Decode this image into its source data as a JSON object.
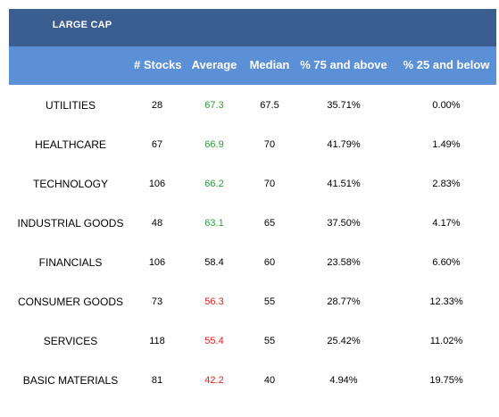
{
  "table": {
    "title": "LARGE CAP",
    "headers": {
      "sector": "",
      "stocks": "# Stocks",
      "average": "Average",
      "median": "Median",
      "pct75": "% 75 and above",
      "pct25": "% 25 and below"
    },
    "rows": [
      {
        "sector": "UTILITIES",
        "stocks": "28",
        "average": "67.3",
        "average_color": "green",
        "median": "67.5",
        "pct75": "35.71%",
        "pct25": "0.00%"
      },
      {
        "sector": "HEALTHCARE",
        "stocks": "67",
        "average": "66.9",
        "average_color": "green",
        "median": "70",
        "pct75": "41.79%",
        "pct25": "1.49%"
      },
      {
        "sector": "TECHNOLOGY",
        "stocks": "106",
        "average": "66.2",
        "average_color": "green",
        "median": "70",
        "pct75": "41.51%",
        "pct25": "2.83%"
      },
      {
        "sector": "INDUSTRIAL GOODS",
        "stocks": "48",
        "average": "63.1",
        "average_color": "green",
        "median": "65",
        "pct75": "37.50%",
        "pct25": "4.17%"
      },
      {
        "sector": "FINANCIALS",
        "stocks": "106",
        "average": "58.4",
        "average_color": "black",
        "median": "60",
        "pct75": "23.58%",
        "pct25": "6.60%"
      },
      {
        "sector": "CONSUMER GOODS",
        "stocks": "73",
        "average": "56.3",
        "average_color": "red",
        "median": "55",
        "pct75": "28.77%",
        "pct25": "12.33%"
      },
      {
        "sector": "SERVICES",
        "stocks": "118",
        "average": "55.4",
        "average_color": "red",
        "median": "55",
        "pct75": "25.42%",
        "pct25": "11.02%"
      },
      {
        "sector": "BASIC MATERIALS",
        "stocks": "81",
        "average": "42.2",
        "average_color": "red",
        "median": "40",
        "pct75": "4.94%",
        "pct25": "19.75%"
      }
    ]
  },
  "colors": {
    "title_bar": "#3b5e91",
    "header_bar": "#5b8fd6",
    "green": "#2e9a3e",
    "red": "#e02020"
  }
}
